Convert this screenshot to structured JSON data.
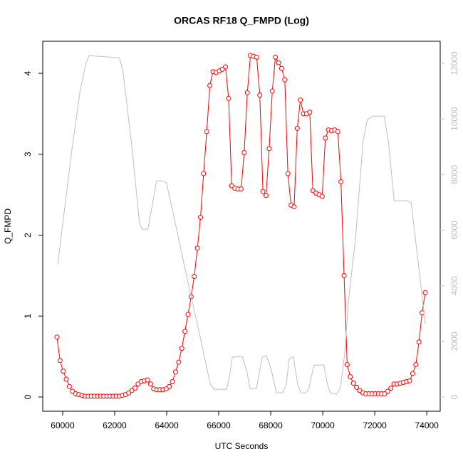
{
  "chart_data": {
    "type": "line",
    "title": "ORCAS RF18 Q_FMPD (Log)",
    "x_label": "UTC Seconds",
    "y_label": "Q_FMPD",
    "xlim": [
      59234,
      74516
    ],
    "ylim": [
      -0.176,
      4.396
    ],
    "y2lim": [
      -511,
      12793
    ],
    "xticks": [
      60000,
      62000,
      64000,
      66000,
      68000,
      70000,
      72000,
      74000
    ],
    "yticks": [
      0,
      1,
      2,
      3,
      4
    ],
    "y2ticks": [
      0,
      2000,
      4000,
      6000,
      8000,
      10000,
      12000
    ],
    "series": [
      {
        "color": "#ff0000",
        "axis": "y",
        "markers": true,
        "x": [
          59780,
          59900,
          60020,
          60140,
          60260,
          60380,
          60500,
          60620,
          60740,
          60860,
          60980,
          61100,
          61220,
          61340,
          61460,
          61580,
          61700,
          61820,
          61940,
          62060,
          62180,
          62300,
          62420,
          62540,
          62660,
          62780,
          62900,
          63020,
          63140,
          63260,
          63380,
          63500,
          63620,
          63740,
          63860,
          63980,
          64100,
          64220,
          64340,
          64460,
          64580,
          64700,
          64820,
          64940,
          65060,
          65180,
          65300,
          65420,
          65540,
          65660,
          65780,
          65900,
          66020,
          66140,
          66260,
          66380,
          66500,
          66620,
          66740,
          66860,
          66980,
          67100,
          67220,
          67340,
          67460,
          67580,
          67700,
          67820,
          67940,
          68060,
          68180,
          68300,
          68420,
          68540,
          68660,
          68780,
          68900,
          69020,
          69140,
          69260,
          69380,
          69500,
          69620,
          69740,
          69860,
          69980,
          70100,
          70220,
          70340,
          70460,
          70580,
          70700,
          70820,
          70940,
          71060,
          71180,
          71300,
          71420,
          71540,
          71660,
          71780,
          71900,
          72020,
          72140,
          72260,
          72380,
          72500,
          72620,
          72740,
          72860,
          72980,
          73100,
          73220,
          73340,
          73460,
          73580,
          73700,
          73820,
          73940
        ],
        "values": [
          0.74,
          0.45,
          0.32,
          0.22,
          0.13,
          0.07,
          0.04,
          0.03,
          0.02,
          0.01,
          0.01,
          0.01,
          0.01,
          0.01,
          0.01,
          0.01,
          0.01,
          0.01,
          0.01,
          0.01,
          0.01,
          0.02,
          0.03,
          0.05,
          0.08,
          0.11,
          0.16,
          0.19,
          0.2,
          0.21,
          0.16,
          0.1,
          0.09,
          0.09,
          0.09,
          0.1,
          0.13,
          0.19,
          0.31,
          0.43,
          0.6,
          0.81,
          1.02,
          1.24,
          1.49,
          1.84,
          2.22,
          2.76,
          3.28,
          3.85,
          4.02,
          4.01,
          4.03,
          4.05,
          4.08,
          3.69,
          2.61,
          2.58,
          2.57,
          2.57,
          3.02,
          3.76,
          4.22,
          4.21,
          4.2,
          3.73,
          2.54,
          2.49,
          3.07,
          3.78,
          4.2,
          4.13,
          4.06,
          3.92,
          2.76,
          2.37,
          2.35,
          3.32,
          3.67,
          3.5,
          3.5,
          3.52,
          2.55,
          2.52,
          2.5,
          2.48,
          3.2,
          3.3,
          3.29,
          3.3,
          3.28,
          2.66,
          1.5,
          0.4,
          0.25,
          0.17,
          0.12,
          0.08,
          0.05,
          0.04,
          0.04,
          0.04,
          0.04,
          0.04,
          0.04,
          0.04,
          0.07,
          0.11,
          0.16,
          0.16,
          0.17,
          0.18,
          0.19,
          0.2,
          0.29,
          0.4,
          0.68,
          1.04,
          1.29
        ]
      },
      {
        "color": "#bebebe",
        "axis": "y2",
        "markers": false,
        "x": [
          59809,
          60355,
          60682,
          60900,
          61010,
          62183,
          62320,
          62675,
          62948,
          63057,
          63275,
          63439,
          63603,
          63712,
          63985,
          64312,
          64776,
          65267,
          65677,
          65813,
          66305,
          66414,
          66523,
          66905,
          67069,
          67205,
          67451,
          67669,
          67833,
          68024,
          68215,
          68460,
          68597,
          68706,
          68870,
          69034,
          69170,
          69361,
          69470,
          69661,
          70044,
          70180,
          70290,
          70535,
          70672,
          70836,
          70999,
          71272,
          71545,
          71709,
          71927,
          72364,
          72528,
          72746,
          73265,
          73401,
          73947
        ],
        "values": [
          4760,
          8900,
          11075,
          12020,
          12275,
          12200,
          11710,
          8900,
          6290,
          6035,
          6035,
          6850,
          7750,
          7775,
          7720,
          6340,
          4300,
          2250,
          460,
          280,
          280,
          715,
          1430,
          1460,
          970,
          305,
          305,
          1430,
          1480,
          970,
          150,
          150,
          460,
          1355,
          1460,
          460,
          150,
          150,
          330,
          1150,
          1150,
          460,
          150,
          100,
          300,
          1480,
          3530,
          5830,
          9155,
          9975,
          10100,
          10100,
          9155,
          7060,
          7060,
          6980,
          2635
        ]
      }
    ]
  }
}
